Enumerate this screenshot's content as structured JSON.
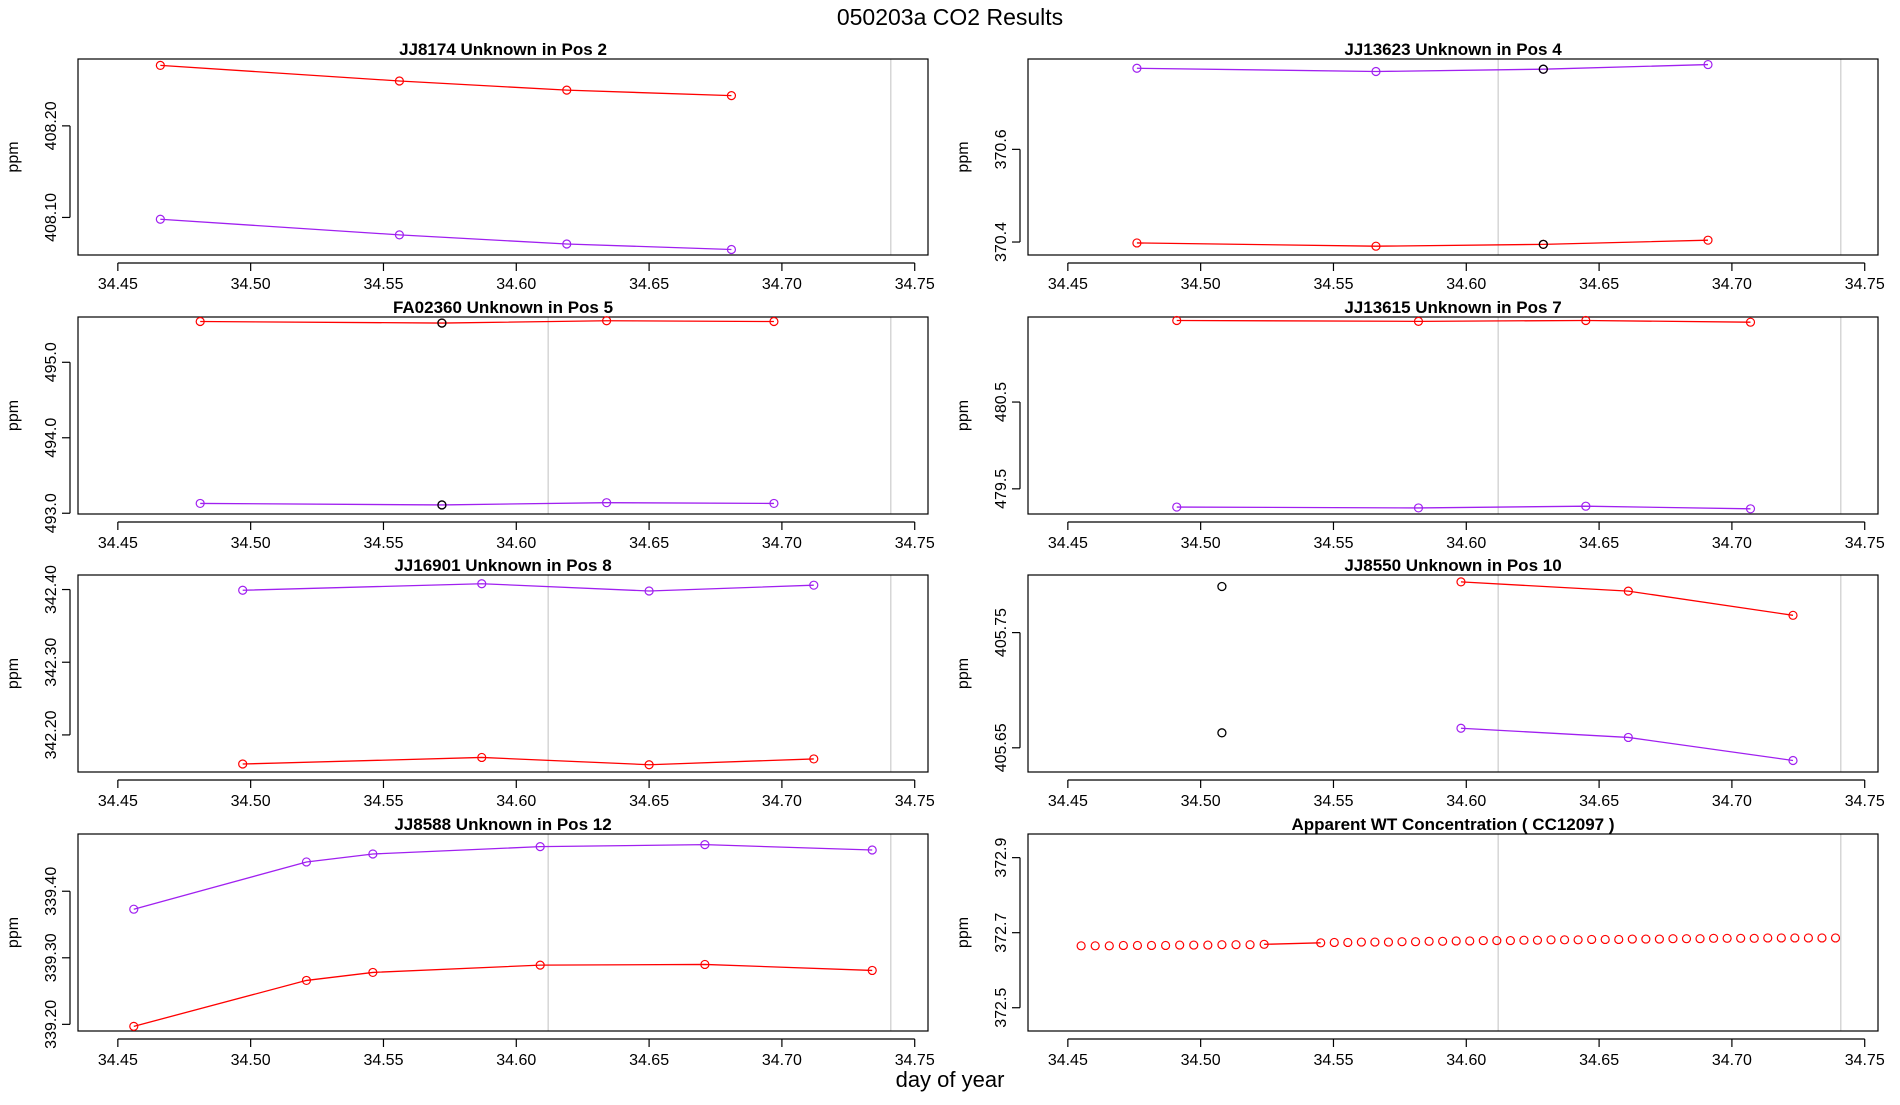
{
  "page_title": "050203a  CO2 Results",
  "x_axis_label": "day of year",
  "colors": {
    "series_a": "#ff0000",
    "series_b": "#a020f0",
    "highlight": "#000000",
    "vline": "#cccccc",
    "frame": "#000000"
  },
  "chart_data": [
    {
      "type": "line",
      "title": "JJ8174    Unknown in Pos 2",
      "ylabel": "ppm",
      "xlim": [
        34.435,
        34.755
      ],
      "ylim": [
        408.059,
        408.273
      ],
      "xticks": [
        "34.45",
        "34.50",
        "34.55",
        "34.60",
        "34.65",
        "34.70",
        "34.75"
      ],
      "yticks": [
        "408.10",
        "408.20"
      ],
      "vlines": [
        34.741
      ],
      "series": [
        {
          "name": "red",
          "color": "#ff0000",
          "x": [
            34.466,
            34.556,
            34.619,
            34.681
          ],
          "y": [
            408.266,
            408.249,
            408.239,
            408.233
          ]
        },
        {
          "name": "purple",
          "color": "#a020f0",
          "x": [
            34.466,
            34.556,
            34.619,
            34.681
          ],
          "y": [
            408.098,
            408.081,
            408.071,
            408.065
          ]
        }
      ],
      "highlights": []
    },
    {
      "type": "line",
      "title": "JJ13623    Unknown in Pos 4",
      "ylabel": "ppm",
      "xlim": [
        34.435,
        34.755
      ],
      "ylim": [
        370.372,
        370.795
      ],
      "xticks": [
        "34.45",
        "34.50",
        "34.55",
        "34.60",
        "34.65",
        "34.70",
        "34.75"
      ],
      "yticks": [
        "370.4",
        "370.6"
      ],
      "vlines": [
        34.612,
        34.741
      ],
      "series": [
        {
          "name": "purple",
          "color": "#a020f0",
          "x": [
            34.476,
            34.566,
            34.629,
            34.691
          ],
          "y": [
            370.775,
            370.768,
            370.773,
            370.783
          ]
        },
        {
          "name": "red",
          "color": "#ff0000",
          "x": [
            34.476,
            34.566,
            34.629,
            34.691
          ],
          "y": [
            370.398,
            370.391,
            370.395,
            370.404
          ]
        }
      ],
      "highlights": [
        {
          "x": 34.629,
          "y": 370.773
        },
        {
          "x": 34.629,
          "y": 370.395
        }
      ]
    },
    {
      "type": "line",
      "title": "FA02360    Unknown in Pos 5",
      "ylabel": "ppm",
      "xlim": [
        34.435,
        34.755
      ],
      "ylim": [
        492.99,
        495.6
      ],
      "xticks": [
        "34.45",
        "34.50",
        "34.55",
        "34.60",
        "34.65",
        "34.70",
        "34.75"
      ],
      "yticks": [
        "493.0",
        "494.0",
        "495.0"
      ],
      "vlines": [
        34.612,
        34.741
      ],
      "series": [
        {
          "name": "red",
          "color": "#ff0000",
          "x": [
            34.481,
            34.572,
            34.634,
            34.697
          ],
          "y": [
            495.54,
            495.52,
            495.55,
            495.54
          ]
        },
        {
          "name": "purple",
          "color": "#a020f0",
          "x": [
            34.481,
            34.572,
            34.634,
            34.697
          ],
          "y": [
            493.13,
            493.11,
            493.14,
            493.13
          ]
        }
      ],
      "highlights": [
        {
          "x": 34.572,
          "y": 495.52
        },
        {
          "x": 34.572,
          "y": 493.11
        }
      ]
    },
    {
      "type": "line",
      "title": "JJ13615    Unknown in Pos 7",
      "ylabel": "ppm",
      "xlim": [
        34.435,
        34.755
      ],
      "ylim": [
        479.21,
        481.48
      ],
      "xticks": [
        "34.45",
        "34.50",
        "34.55",
        "34.60",
        "34.65",
        "34.70",
        "34.75"
      ],
      "yticks": [
        "479.5",
        "480.5"
      ],
      "vlines": [
        34.612,
        34.741
      ],
      "series": [
        {
          "name": "red",
          "color": "#ff0000",
          "x": [
            34.491,
            34.582,
            34.645,
            34.707
          ],
          "y": [
            481.44,
            481.43,
            481.44,
            481.42
          ]
        },
        {
          "name": "purple",
          "color": "#a020f0",
          "x": [
            34.491,
            34.582,
            34.645,
            34.707
          ],
          "y": [
            479.29,
            479.28,
            479.3,
            479.27
          ]
        }
      ],
      "highlights": []
    },
    {
      "type": "line",
      "title": "JJ16901    Unknown in Pos 8",
      "ylabel": "ppm",
      "xlim": [
        34.435,
        34.755
      ],
      "ylim": [
        342.149,
        342.42
      ],
      "xticks": [
        "34.45",
        "34.50",
        "34.55",
        "34.60",
        "34.65",
        "34.70",
        "34.75"
      ],
      "yticks": [
        "342.20",
        "342.30",
        "342.40"
      ],
      "vlines": [
        34.612,
        34.741
      ],
      "series": [
        {
          "name": "purple",
          "color": "#a020f0",
          "x": [
            34.497,
            34.587,
            34.65,
            34.712
          ],
          "y": [
            342.399,
            342.408,
            342.398,
            342.406
          ]
        },
        {
          "name": "red",
          "color": "#ff0000",
          "x": [
            34.497,
            34.587,
            34.65,
            34.712
          ],
          "y": [
            342.16,
            342.169,
            342.159,
            342.167
          ]
        }
      ],
      "highlights": []
    },
    {
      "type": "line",
      "title": "JJ8550    Unknown in Pos 10",
      "ylabel": "ppm",
      "xlim": [
        34.435,
        34.755
      ],
      "ylim": [
        405.629,
        405.8
      ],
      "xticks": [
        "34.45",
        "34.50",
        "34.55",
        "34.60",
        "34.65",
        "34.70",
        "34.75"
      ],
      "yticks": [
        "405.65",
        "405.75"
      ],
      "vlines": [
        34.612,
        34.741
      ],
      "series": [
        {
          "name": "red",
          "color": "#ff0000",
          "x": [
            34.598,
            34.661,
            34.723
          ],
          "y": [
            405.794,
            405.786,
            405.765
          ]
        },
        {
          "name": "purple",
          "color": "#a020f0",
          "x": [
            34.598,
            34.661,
            34.723
          ],
          "y": [
            405.667,
            405.659,
            405.639
          ]
        }
      ],
      "highlights": [
        {
          "x": 34.508,
          "y": 405.79
        },
        {
          "x": 34.508,
          "y": 405.663
        }
      ]
    },
    {
      "type": "line",
      "title": "JJ8588    Unknown in Pos 12",
      "ylabel": "ppm",
      "xlim": [
        34.435,
        34.755
      ],
      "ylim": [
        339.19,
        339.486
      ],
      "xticks": [
        "34.45",
        "34.50",
        "34.55",
        "34.60",
        "34.65",
        "34.70",
        "34.75"
      ],
      "yticks": [
        "339.20",
        "339.30",
        "339.40"
      ],
      "vlines": [
        34.612,
        34.741
      ],
      "series": [
        {
          "name": "purple",
          "color": "#a020f0",
          "x": [
            34.456,
            34.521,
            34.546,
            34.609,
            34.671,
            34.734
          ],
          "y": [
            339.373,
            339.444,
            339.456,
            339.467,
            339.47,
            339.462
          ]
        },
        {
          "name": "red",
          "color": "#ff0000",
          "x": [
            34.456,
            34.521,
            34.546,
            34.609,
            34.671,
            34.734
          ],
          "y": [
            339.197,
            339.266,
            339.278,
            339.289,
            339.29,
            339.281
          ]
        }
      ],
      "highlights": []
    },
    {
      "type": "scatter",
      "title": "Apparent WT Concentration ( CC12097 )",
      "ylabel": "ppm",
      "xlim": [
        34.435,
        34.755
      ],
      "ylim": [
        372.438,
        372.963
      ],
      "xticks": [
        "34.45",
        "34.50",
        "34.55",
        "34.60",
        "34.65",
        "34.70",
        "34.75"
      ],
      "yticks": [
        "372.5",
        "372.7",
        "372.9"
      ],
      "vlines": [
        34.612,
        34.741
      ],
      "points_color": "#ff0000",
      "points_x": [
        34.455,
        34.4603,
        34.4656,
        34.4709,
        34.4762,
        34.4815,
        34.4868,
        34.4921,
        34.4974,
        34.5027,
        34.508,
        34.5133,
        34.5186,
        34.5239,
        34.5452,
        34.5503,
        34.5554,
        34.5605,
        34.5656,
        34.5707,
        34.5758,
        34.5809,
        34.586,
        34.5911,
        34.5962,
        34.6013,
        34.6064,
        34.6115,
        34.6166,
        34.6217,
        34.6268,
        34.6319,
        34.637,
        34.6421,
        34.6472,
        34.6523,
        34.6574,
        34.6625,
        34.6676,
        34.6727,
        34.6778,
        34.6829,
        34.688,
        34.6931,
        34.6982,
        34.7033,
        34.7084,
        34.7135,
        34.7186,
        34.7237,
        34.7288,
        34.7339,
        34.739
      ],
      "points_y": [
        372.665,
        372.665,
        372.665,
        372.666,
        372.666,
        372.666,
        372.666,
        372.667,
        372.667,
        372.667,
        372.668,
        372.668,
        372.668,
        372.669,
        372.673,
        372.674,
        372.674,
        372.675,
        372.675,
        372.675,
        372.676,
        372.676,
        372.677,
        372.677,
        372.678,
        372.678,
        372.679,
        372.679,
        372.679,
        372.68,
        372.68,
        372.681,
        372.681,
        372.681,
        372.682,
        372.682,
        372.682,
        372.683,
        372.683,
        372.683,
        372.684,
        372.684,
        372.684,
        372.685,
        372.685,
        372.685,
        372.685,
        372.686,
        372.686,
        372.686,
        372.686,
        372.686,
        372.686
      ],
      "segment": {
        "x": [
          34.5239,
          34.5452
        ],
        "y": [
          372.669,
          372.673
        ]
      },
      "highlights": []
    }
  ]
}
